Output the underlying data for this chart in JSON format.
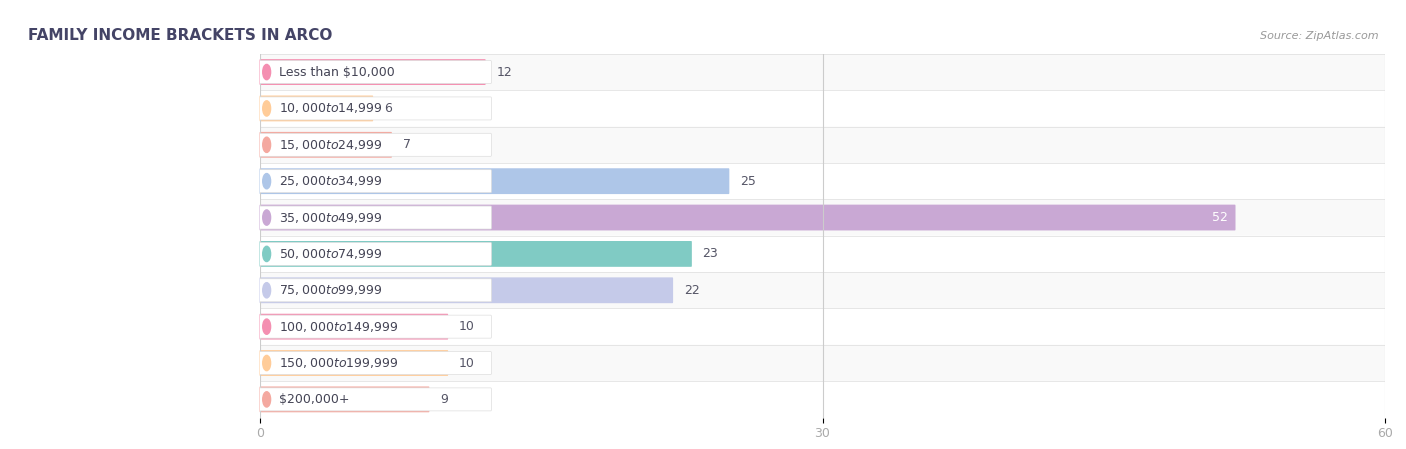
{
  "title": "FAMILY INCOME BRACKETS IN ARCO",
  "source": "Source: ZipAtlas.com",
  "categories": [
    "Less than $10,000",
    "$10,000 to $14,999",
    "$15,000 to $24,999",
    "$25,000 to $34,999",
    "$35,000 to $49,999",
    "$50,000 to $74,999",
    "$75,000 to $99,999",
    "$100,000 to $149,999",
    "$150,000 to $199,999",
    "$200,000+"
  ],
  "values": [
    12,
    6,
    7,
    25,
    52,
    23,
    22,
    10,
    10,
    9
  ],
  "bar_colors": [
    "#f48fb1",
    "#ffcc99",
    "#f4a9a0",
    "#aec6e8",
    "#c9a8d4",
    "#80cbc4",
    "#c5cae9",
    "#f48fb1",
    "#ffcc99",
    "#f4a9a0"
  ],
  "xlim": [
    0,
    60
  ],
  "xticks": [
    0,
    30,
    60
  ],
  "bg_color": "#f2f2f2",
  "row_colors": [
    "#f9f9f9",
    "#ffffff"
  ],
  "title_fontsize": 11,
  "label_fontsize": 9,
  "value_fontsize": 9,
  "bar_height": 0.65,
  "title_color": "#444466",
  "source_color": "#999999",
  "tick_color": "#aaaaaa",
  "value_color_dark": "#555566",
  "value_color_light": "#ffffff"
}
